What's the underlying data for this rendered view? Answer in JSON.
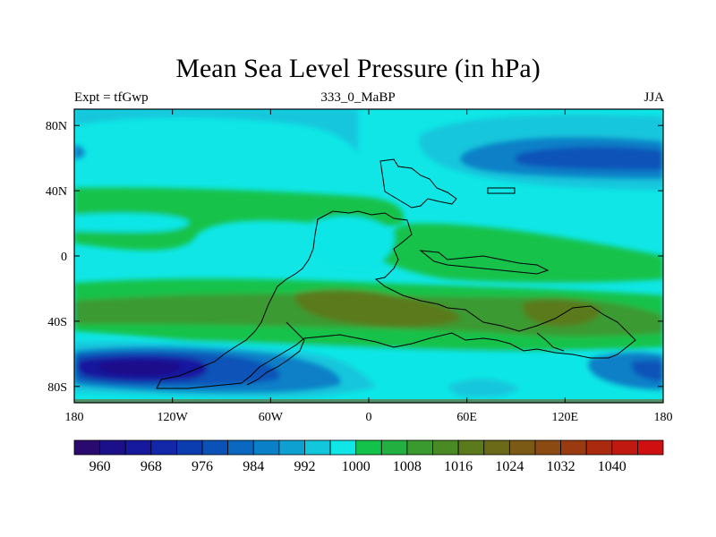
{
  "header": {
    "title": "Mean Sea Level Pressure (in hPa)",
    "left_label": "Expt = tfGwp",
    "center_label": "333_0_MaBP",
    "right_label": "JJA"
  },
  "map": {
    "lon_ticks": [
      "180",
      "120W",
      "60W",
      "0",
      "60E",
      "120E",
      "180"
    ],
    "lat_ticks": [
      "80N",
      "40N",
      "0",
      "40S",
      "80S"
    ],
    "lon_range": [
      -180,
      180
    ],
    "lat_range": [
      -90,
      90
    ]
  },
  "colorbar": {
    "levels": [
      956,
      960,
      964,
      968,
      972,
      976,
      980,
      984,
      988,
      992,
      996,
      1000,
      1004,
      1008,
      1012,
      1016,
      1020,
      1024,
      1028,
      1032,
      1036,
      1040,
      1044
    ],
    "labels": [
      "960",
      "968",
      "976",
      "984",
      "992",
      "1000",
      "1008",
      "1016",
      "1024",
      "1032",
      "1040"
    ],
    "colors": [
      "#2a0a6e",
      "#1c0f8a",
      "#16189e",
      "#1228a8",
      "#0b3cb0",
      "#0a52b8",
      "#0a68c0",
      "#0a80c8",
      "#0ea0d0",
      "#12c6dc",
      "#10e6e6",
      "#12c24a",
      "#22b040",
      "#3a9a30",
      "#4a8a24",
      "#5a7a1c",
      "#6a6a18",
      "#7a5a14",
      "#8a4a12",
      "#9a3a10",
      "#aa2a10",
      "#c01a10",
      "#d01010"
    ]
  },
  "colors": {
    "ocean_base": "#10e6e6",
    "coastline": "#000000"
  }
}
